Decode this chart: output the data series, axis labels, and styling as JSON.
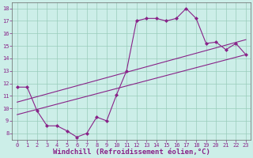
{
  "xlabel": "Windchill (Refroidissement éolien,°C)",
  "background_color": "#cceee8",
  "grid_color": "#99ccbb",
  "line_color": "#882288",
  "tick_color": "#882288",
  "xlim": [
    -0.5,
    23.5
  ],
  "ylim": [
    7.5,
    18.5
  ],
  "xticks": [
    0,
    1,
    2,
    3,
    4,
    5,
    6,
    7,
    8,
    9,
    10,
    11,
    12,
    13,
    14,
    15,
    16,
    17,
    18,
    19,
    20,
    21,
    22,
    23
  ],
  "yticks": [
    8,
    9,
    10,
    11,
    12,
    13,
    14,
    15,
    16,
    17,
    18
  ],
  "line1_x": [
    0,
    1,
    2,
    3,
    4,
    5,
    6,
    7,
    8,
    9,
    10,
    11,
    12,
    13,
    14,
    15,
    16,
    17,
    18,
    19,
    20,
    21,
    22,
    23
  ],
  "line1_y": [
    11.7,
    11.7,
    9.8,
    8.6,
    8.6,
    8.2,
    7.7,
    8.0,
    9.3,
    9.0,
    11.1,
    13.0,
    17.0,
    17.2,
    17.2,
    17.0,
    17.2,
    18.0,
    17.2,
    15.2,
    15.3,
    14.7,
    15.2,
    14.3
  ],
  "line2_x": [
    0,
    23
  ],
  "line2_y": [
    9.5,
    14.3
  ],
  "line3_x": [
    0,
    23
  ],
  "line3_y": [
    10.5,
    15.5
  ],
  "figsize": [
    3.2,
    2.0
  ],
  "dpi": 100,
  "tick_fontsize": 5.0,
  "xlabel_fontsize": 6.5
}
